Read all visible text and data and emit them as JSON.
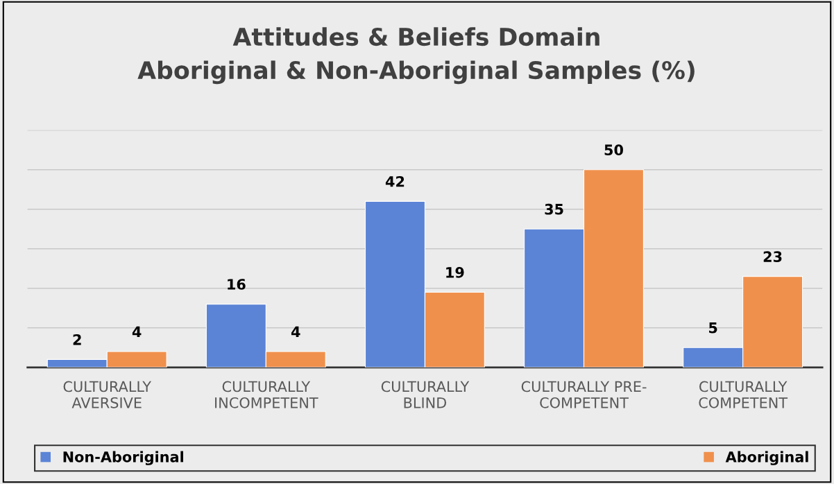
{
  "chart_data": {
    "type": "bar",
    "title": "Attitudes & Beliefs Domain\nAboriginal & Non-Aboriginal Samples (%)",
    "categories": [
      "CULTURALLY\nAVERSIVE",
      "CULTURALLY\nINCOMPETENT",
      "CULTURALLY\nBLIND",
      "CULTURALLY PRE-\nCOMPETENT",
      "CULTURALLY\nCOMPETENT"
    ],
    "series": [
      {
        "name": "Non-Aboriginal",
        "color": "#5b84d6",
        "values": [
          2,
          16,
          42,
          35,
          5
        ]
      },
      {
        "name": "Aboriginal",
        "color": "#f0904d",
        "values": [
          4,
          4,
          19,
          50,
          23
        ]
      }
    ],
    "ylim": [
      0,
      60
    ],
    "yticks": [
      {
        "value": 0,
        "label": null
      },
      {
        "value": 10,
        "label": null
      },
      {
        "value": 20,
        "label": null
      },
      {
        "value": 30,
        "label": null
      },
      {
        "value": 40,
        "label": null
      },
      {
        "value": 50,
        "label": null
      },
      {
        "value": 60,
        "label": null
      }
    ],
    "tick_labels": "x",
    "grid": "y",
    "data_labels": true,
    "legend": "bottom"
  }
}
